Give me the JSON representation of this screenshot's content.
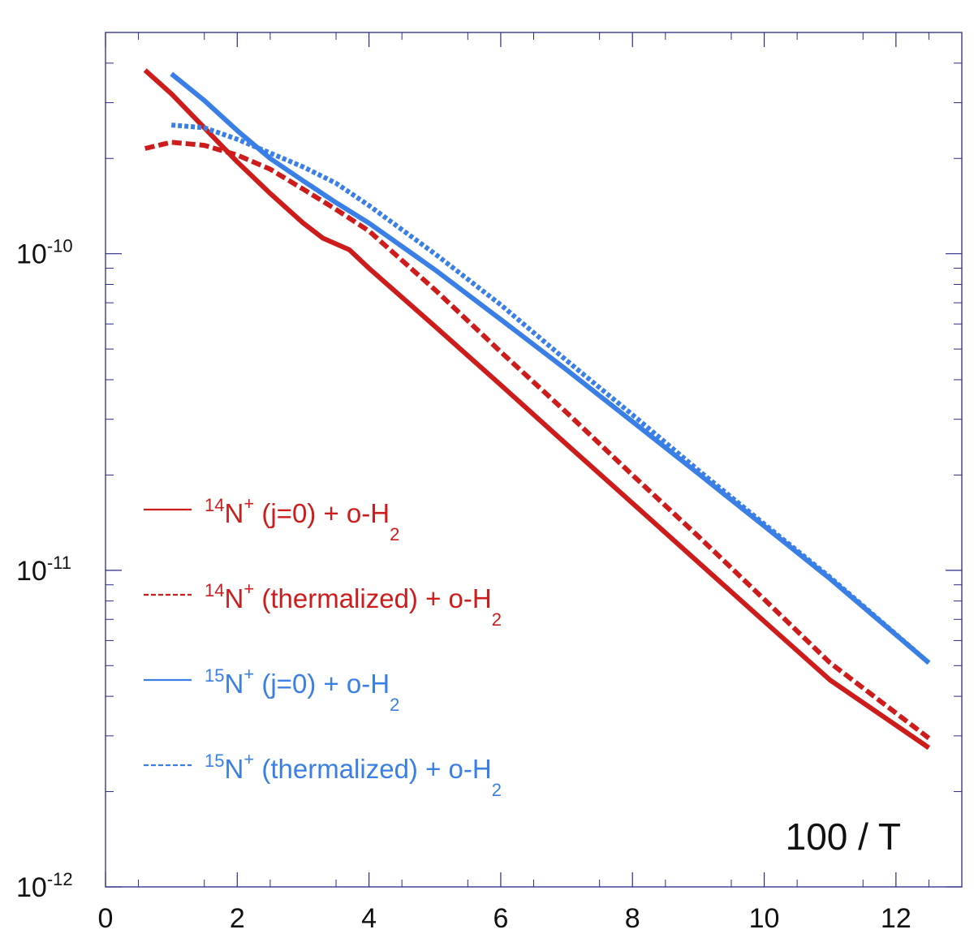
{
  "chart_data": {
    "type": "line",
    "title": "",
    "xlabel": "",
    "ylabel": "",
    "annotation": "100 / T",
    "xlim": [
      0,
      13
    ],
    "ylim": [
      1e-12,
      5e-10
    ],
    "yscale": "log",
    "x_ticks": [
      "0",
      "2",
      "4",
      "6",
      "8",
      "10",
      "12"
    ],
    "y_ticks": [
      {
        "value": 1e-12,
        "base": "10",
        "exp": "-12"
      },
      {
        "value": 1e-11,
        "base": "10",
        "exp": "-11"
      },
      {
        "value": 1e-10,
        "base": "10",
        "exp": "-10"
      }
    ],
    "colors": {
      "red": "#cc1c1c",
      "blue": "#3a7fe6",
      "axis": "#2a2a8a"
    },
    "series": [
      {
        "name": "14N+ (j=0) + o-H2",
        "legend": {
          "sup_mass": "14",
          "elem": "N",
          "charge": "+",
          "middle": " (j=0) + o-H",
          "sub": "2"
        },
        "color": "#cc1c1c",
        "dash": "solid",
        "x": [
          0.6,
          1.0,
          1.5,
          2.0,
          2.5,
          3.0,
          3.3,
          3.7,
          4.0,
          5.0,
          6.0,
          7.0,
          8.0,
          9.0,
          10.0,
          11.0,
          12.5
        ],
        "y": [
          3.8e-10,
          3.2e-10,
          2.5e-10,
          1.95e-10,
          1.55e-10,
          1.25e-10,
          1.12e-10,
          1.03e-10,
          9e-11,
          5.9e-11,
          3.85e-11,
          2.5e-11,
          1.63e-11,
          1.06e-11,
          6.9e-12,
          4.5e-12,
          2.75e-12
        ]
      },
      {
        "name": "14N+ (thermalized) + o-H2",
        "legend": {
          "sup_mass": "14",
          "elem": "N",
          "charge": "+",
          "middle": " (thermalized) + o-H",
          "sub": "2"
        },
        "color": "#cc1c1c",
        "dash": "dashed",
        "x": [
          0.6,
          1.0,
          1.5,
          2.0,
          2.5,
          3.0,
          3.5,
          4.0,
          5.0,
          6.0,
          7.0,
          8.0,
          9.0,
          10.0,
          11.0,
          12.5
        ],
        "y": [
          2.15e-10,
          2.25e-10,
          2.2e-10,
          2.05e-10,
          1.85e-10,
          1.6e-10,
          1.38e-10,
          1.18e-10,
          7.7e-11,
          4.9e-11,
          3.15e-11,
          2e-11,
          1.28e-11,
          8.1e-12,
          5.1e-12,
          2.95e-12
        ]
      },
      {
        "name": "15N+ (j=0) + o-H2",
        "legend": {
          "sup_mass": "15",
          "elem": "N",
          "charge": "+",
          "middle": " (j=0) + o-H",
          "sub": "2"
        },
        "color": "#3a7fe6",
        "dash": "solid",
        "x": [
          1.0,
          1.5,
          2.0,
          2.5,
          3.0,
          3.5,
          4.0,
          5.0,
          6.0,
          7.0,
          8.0,
          9.0,
          10.0,
          11.0,
          12.5
        ],
        "y": [
          3.7e-10,
          3.05e-10,
          2.45e-10,
          2e-10,
          1.7e-10,
          1.45e-10,
          1.25e-10,
          8.9e-11,
          6.2e-11,
          4.3e-11,
          2.95e-11,
          2.02e-11,
          1.38e-11,
          9.4e-12,
          5.1e-12
        ]
      },
      {
        "name": "15N+ (thermalized) + o-H2",
        "legend": {
          "sup_mass": "15",
          "elem": "N",
          "charge": "+",
          "middle": " (thermalized) + o-H",
          "sub": "2"
        },
        "color": "#3a7fe6",
        "dash": "dotted",
        "x": [
          1.0,
          1.5,
          2.0,
          2.5,
          3.0,
          3.5,
          4.0,
          5.0,
          6.0,
          7.0,
          8.0,
          9.0,
          10.0,
          11.0,
          12.5
        ],
        "y": [
          2.55e-10,
          2.5e-10,
          2.3e-10,
          2.08e-10,
          1.88e-10,
          1.67e-10,
          1.42e-10,
          1e-10,
          6.9e-11,
          4.6e-11,
          3.1e-11,
          2.07e-11,
          1.4e-11,
          9.5e-12,
          5.1e-12
        ]
      }
    ],
    "legend_position": "left-center"
  }
}
